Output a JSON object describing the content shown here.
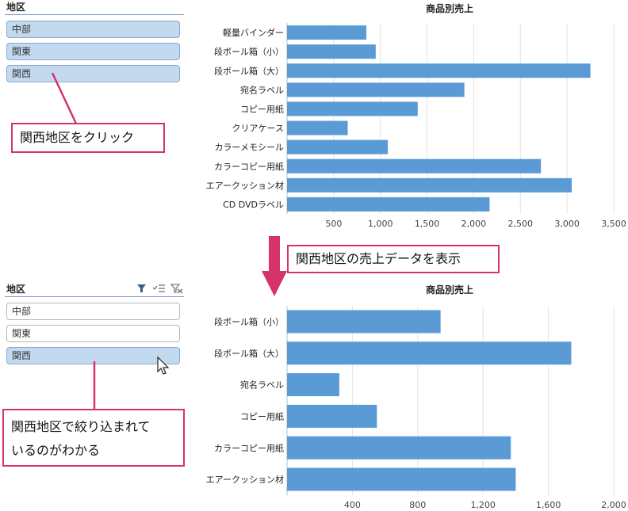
{
  "top": {
    "slicer": {
      "title": "地区",
      "items": [
        {
          "label": "中部",
          "selected": true
        },
        {
          "label": "関東",
          "selected": true
        },
        {
          "label": "関西",
          "selected": true
        }
      ]
    },
    "callout": "関西地区をクリック"
  },
  "middle": {
    "callout": "関西地区の売上データを表示"
  },
  "bottom": {
    "slicer": {
      "title": "地区",
      "items": [
        {
          "label": "中部",
          "selected": false
        },
        {
          "label": "関東",
          "selected": false
        },
        {
          "label": "関西",
          "selected": true
        }
      ]
    },
    "callout_line1": "関西地区で絞り込まれて",
    "callout_line2": "いるのがわかる",
    "icons": [
      "filter-icon",
      "multi-select-icon",
      "clear-filter-icon"
    ]
  },
  "colors": {
    "bar": "#5b9bd5",
    "accent": "#d6336c",
    "selected": "#c3d9ef"
  },
  "chart_data": [
    {
      "type": "bar",
      "orientation": "horizontal",
      "title": "商品別売上",
      "categories": [
        "軽量バインダー",
        "段ボール箱（小）",
        "段ボール箱（大）",
        "宛名ラベル",
        "コピー用紙",
        "クリアケース",
        "カラーメモシール",
        "カラーコピー用紙",
        "エアークッション材",
        "CD DVDラベル"
      ],
      "values": [
        850,
        950,
        3250,
        1900,
        1400,
        650,
        1080,
        2720,
        3050,
        2170
      ],
      "xlim": [
        0,
        3500
      ],
      "xticks": [
        500,
        1000,
        1500,
        2000,
        2500,
        3000,
        3500
      ],
      "xtick_labels": [
        "500",
        "1,000",
        "1,500",
        "2,000",
        "2,500",
        "3,000",
        "3,500"
      ]
    },
    {
      "type": "bar",
      "orientation": "horizontal",
      "title": "商品別売上",
      "categories": [
        "段ボール箱（小）",
        "段ボール箱（大）",
        "宛名ラベル",
        "コピー用紙",
        "カラーコピー用紙",
        "エアークッション材"
      ],
      "values": [
        940,
        1740,
        320,
        550,
        1370,
        1400
      ],
      "xlim": [
        0,
        2000
      ],
      "xticks": [
        400,
        800,
        1200,
        1600,
        2000
      ],
      "xtick_labels": [
        "400",
        "800",
        "1,200",
        "1,600",
        "2,000"
      ]
    }
  ]
}
